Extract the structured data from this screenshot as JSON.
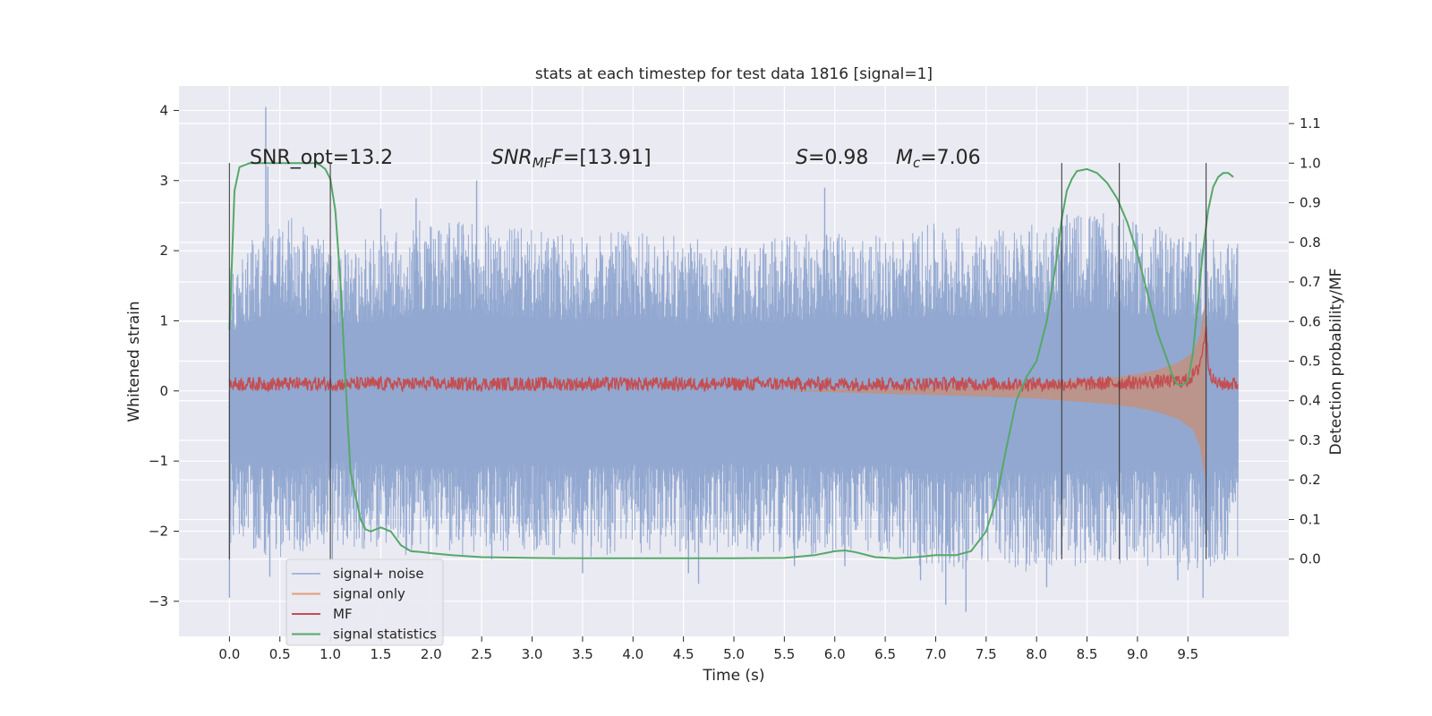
{
  "chart_data": {
    "type": "line",
    "title": "stats at each timestep for test data 1816 [signal=1]",
    "xlabel": "Time (s)",
    "ylabel": "Whitened strain",
    "y2label": "Detection probability/MF",
    "xlim": [
      -0.5,
      10.5
    ],
    "ylim": [
      -3.5,
      4.35
    ],
    "y2lim": [
      -0.195,
      1.195
    ],
    "xticks": [
      "0.0",
      "0.5",
      "1.0",
      "1.5",
      "2.0",
      "2.5",
      "3.0",
      "3.5",
      "4.0",
      "4.5",
      "5.0",
      "5.5",
      "6.0",
      "6.5",
      "7.0",
      "7.5",
      "8.0",
      "8.5",
      "9.0",
      "9.5"
    ],
    "yticks": [
      "4",
      "3",
      "2",
      "1",
      "0",
      "−1",
      "−2",
      "−3"
    ],
    "y2ticks": [
      "1.1",
      "1.0",
      "0.9",
      "0.8",
      "0.7",
      "0.6",
      "0.5",
      "0.4",
      "0.3",
      "0.2",
      "0.1",
      "0.0"
    ],
    "grid": true,
    "legend_position": "lower-left",
    "annotations": {
      "snr_opt": "SNR_opt=13.2",
      "snr_mf_name": "SNR",
      "snr_mf_sub": "MF",
      "snr_mf_rest": "=[13.91]",
      "s_name": "S",
      "s_rest": "=0.98",
      "mc_name": "M",
      "mc_sub": "c",
      "mc_rest": "=7.06"
    },
    "markers_x": [
      0.0,
      1.0,
      8.25,
      8.82,
      9.68
    ],
    "markers_y_range": [
      -2.4,
      3.25
    ],
    "series": [
      {
        "name": "signal+ noise",
        "color": "#92a8d1",
        "axis": "left",
        "envelope_x": [
          0.0,
          0.5,
          1.0,
          1.5,
          2.0,
          2.5,
          3.0,
          3.5,
          4.0,
          4.5,
          5.0,
          5.5,
          6.0,
          6.5,
          7.0,
          7.5,
          8.0,
          8.5,
          9.0,
          9.5,
          10.0
        ],
        "envelope_hi": [
          1.8,
          2.6,
          2.1,
          2.2,
          2.5,
          2.4,
          2.3,
          2.2,
          2.3,
          2.2,
          2.1,
          2.2,
          2.3,
          2.2,
          2.4,
          2.3,
          2.4,
          2.6,
          2.4,
          2.3,
          2.1
        ],
        "envelope_lo": [
          -2.2,
          -2.4,
          -2.2,
          -2.3,
          -2.4,
          -2.3,
          -2.3,
          -2.4,
          -2.3,
          -2.4,
          -2.3,
          -2.3,
          -2.4,
          -2.3,
          -2.6,
          -2.5,
          -2.6,
          -2.5,
          -2.5,
          -2.6,
          -2.4
        ],
        "peaks": [
          [
            0.0,
            -2.95
          ],
          [
            0.36,
            4.05
          ],
          [
            0.38,
            3.2
          ],
          [
            0.4,
            -2.65
          ],
          [
            1.02,
            -2.4
          ],
          [
            1.5,
            2.6
          ],
          [
            1.85,
            2.75
          ],
          [
            2.45,
            3.0
          ],
          [
            2.6,
            -2.4
          ],
          [
            3.5,
            -2.6
          ],
          [
            4.55,
            -2.6
          ],
          [
            4.65,
            -2.75
          ],
          [
            5.6,
            -2.5
          ],
          [
            5.9,
            2.9
          ],
          [
            6.1,
            -2.5
          ],
          [
            6.85,
            -2.7
          ],
          [
            7.1,
            -3.05
          ],
          [
            7.3,
            -3.15
          ],
          [
            8.1,
            -2.8
          ],
          [
            8.6,
            2.45
          ],
          [
            9.4,
            -2.7
          ],
          [
            9.65,
            -2.95
          ]
        ]
      },
      {
        "name": "signal only",
        "color": "#dd8452",
        "axis": "left",
        "x": [
          5.5,
          6.0,
          6.5,
          7.0,
          7.5,
          8.0,
          8.5,
          8.8,
          9.0,
          9.2,
          9.4,
          9.55,
          9.62,
          9.66,
          9.68
        ],
        "amplitude": [
          0.0,
          0.02,
          0.04,
          0.06,
          0.08,
          0.11,
          0.16,
          0.2,
          0.24,
          0.3,
          0.4,
          0.55,
          0.8,
          1.15,
          1.3
        ]
      },
      {
        "name": "MF",
        "color": "#c44e52",
        "axis": "left",
        "x": [
          0.0,
          0.5,
          1.0,
          1.5,
          2.0,
          2.5,
          3.0,
          3.5,
          4.0,
          4.5,
          5.0,
          5.5,
          6.0,
          6.5,
          7.0,
          7.5,
          8.0,
          8.5,
          9.0,
          9.5,
          9.6,
          9.65,
          9.68,
          9.7,
          9.75,
          9.8,
          10.0
        ],
        "values": [
          0.1,
          0.1,
          0.1,
          0.1,
          0.1,
          0.1,
          0.1,
          0.1,
          0.1,
          0.1,
          0.1,
          0.1,
          0.1,
          0.1,
          0.1,
          0.1,
          0.1,
          0.1,
          0.12,
          0.15,
          0.3,
          0.6,
          0.95,
          0.4,
          0.15,
          0.1,
          0.1
        ],
        "band": 0.1
      },
      {
        "name": "signal statistics",
        "color": "#55a868",
        "axis": "right",
        "x": [
          0.0,
          0.05,
          0.1,
          0.15,
          0.2,
          0.3,
          0.4,
          0.5,
          0.6,
          0.7,
          0.8,
          0.85,
          0.9,
          0.95,
          1.0,
          1.05,
          1.1,
          1.15,
          1.2,
          1.3,
          1.35,
          1.4,
          1.45,
          1.5,
          1.6,
          1.7,
          1.8,
          1.9,
          2.0,
          2.2,
          2.5,
          3.0,
          3.5,
          4.0,
          4.5,
          5.0,
          5.5,
          5.8,
          6.0,
          6.1,
          6.2,
          6.4,
          6.6,
          6.8,
          7.0,
          7.2,
          7.35,
          7.5,
          7.6,
          7.7,
          7.8,
          7.9,
          8.0,
          8.1,
          8.2,
          8.25,
          8.3,
          8.35,
          8.4,
          8.5,
          8.6,
          8.7,
          8.8,
          8.9,
          9.0,
          9.1,
          9.2,
          9.3,
          9.35,
          9.4,
          9.45,
          9.5,
          9.55,
          9.6,
          9.65,
          9.7,
          9.75,
          9.8,
          9.85,
          9.9,
          9.95
        ],
        "values": [
          0.58,
          0.93,
          0.99,
          0.995,
          1.0,
          1.0,
          1.0,
          1.0,
          1.0,
          1.0,
          1.0,
          1.0,
          0.995,
          0.985,
          0.96,
          0.88,
          0.7,
          0.45,
          0.22,
          0.1,
          0.075,
          0.07,
          0.075,
          0.08,
          0.07,
          0.035,
          0.02,
          0.018,
          0.015,
          0.01,
          0.005,
          0.003,
          0.002,
          0.002,
          0.002,
          0.002,
          0.003,
          0.01,
          0.02,
          0.022,
          0.018,
          0.005,
          0.002,
          0.005,
          0.01,
          0.01,
          0.02,
          0.07,
          0.15,
          0.28,
          0.4,
          0.46,
          0.5,
          0.6,
          0.76,
          0.86,
          0.93,
          0.96,
          0.98,
          0.985,
          0.975,
          0.95,
          0.91,
          0.85,
          0.77,
          0.67,
          0.57,
          0.5,
          0.46,
          0.44,
          0.44,
          0.45,
          0.52,
          0.65,
          0.78,
          0.88,
          0.94,
          0.965,
          0.975,
          0.975,
          0.965
        ]
      }
    ]
  }
}
